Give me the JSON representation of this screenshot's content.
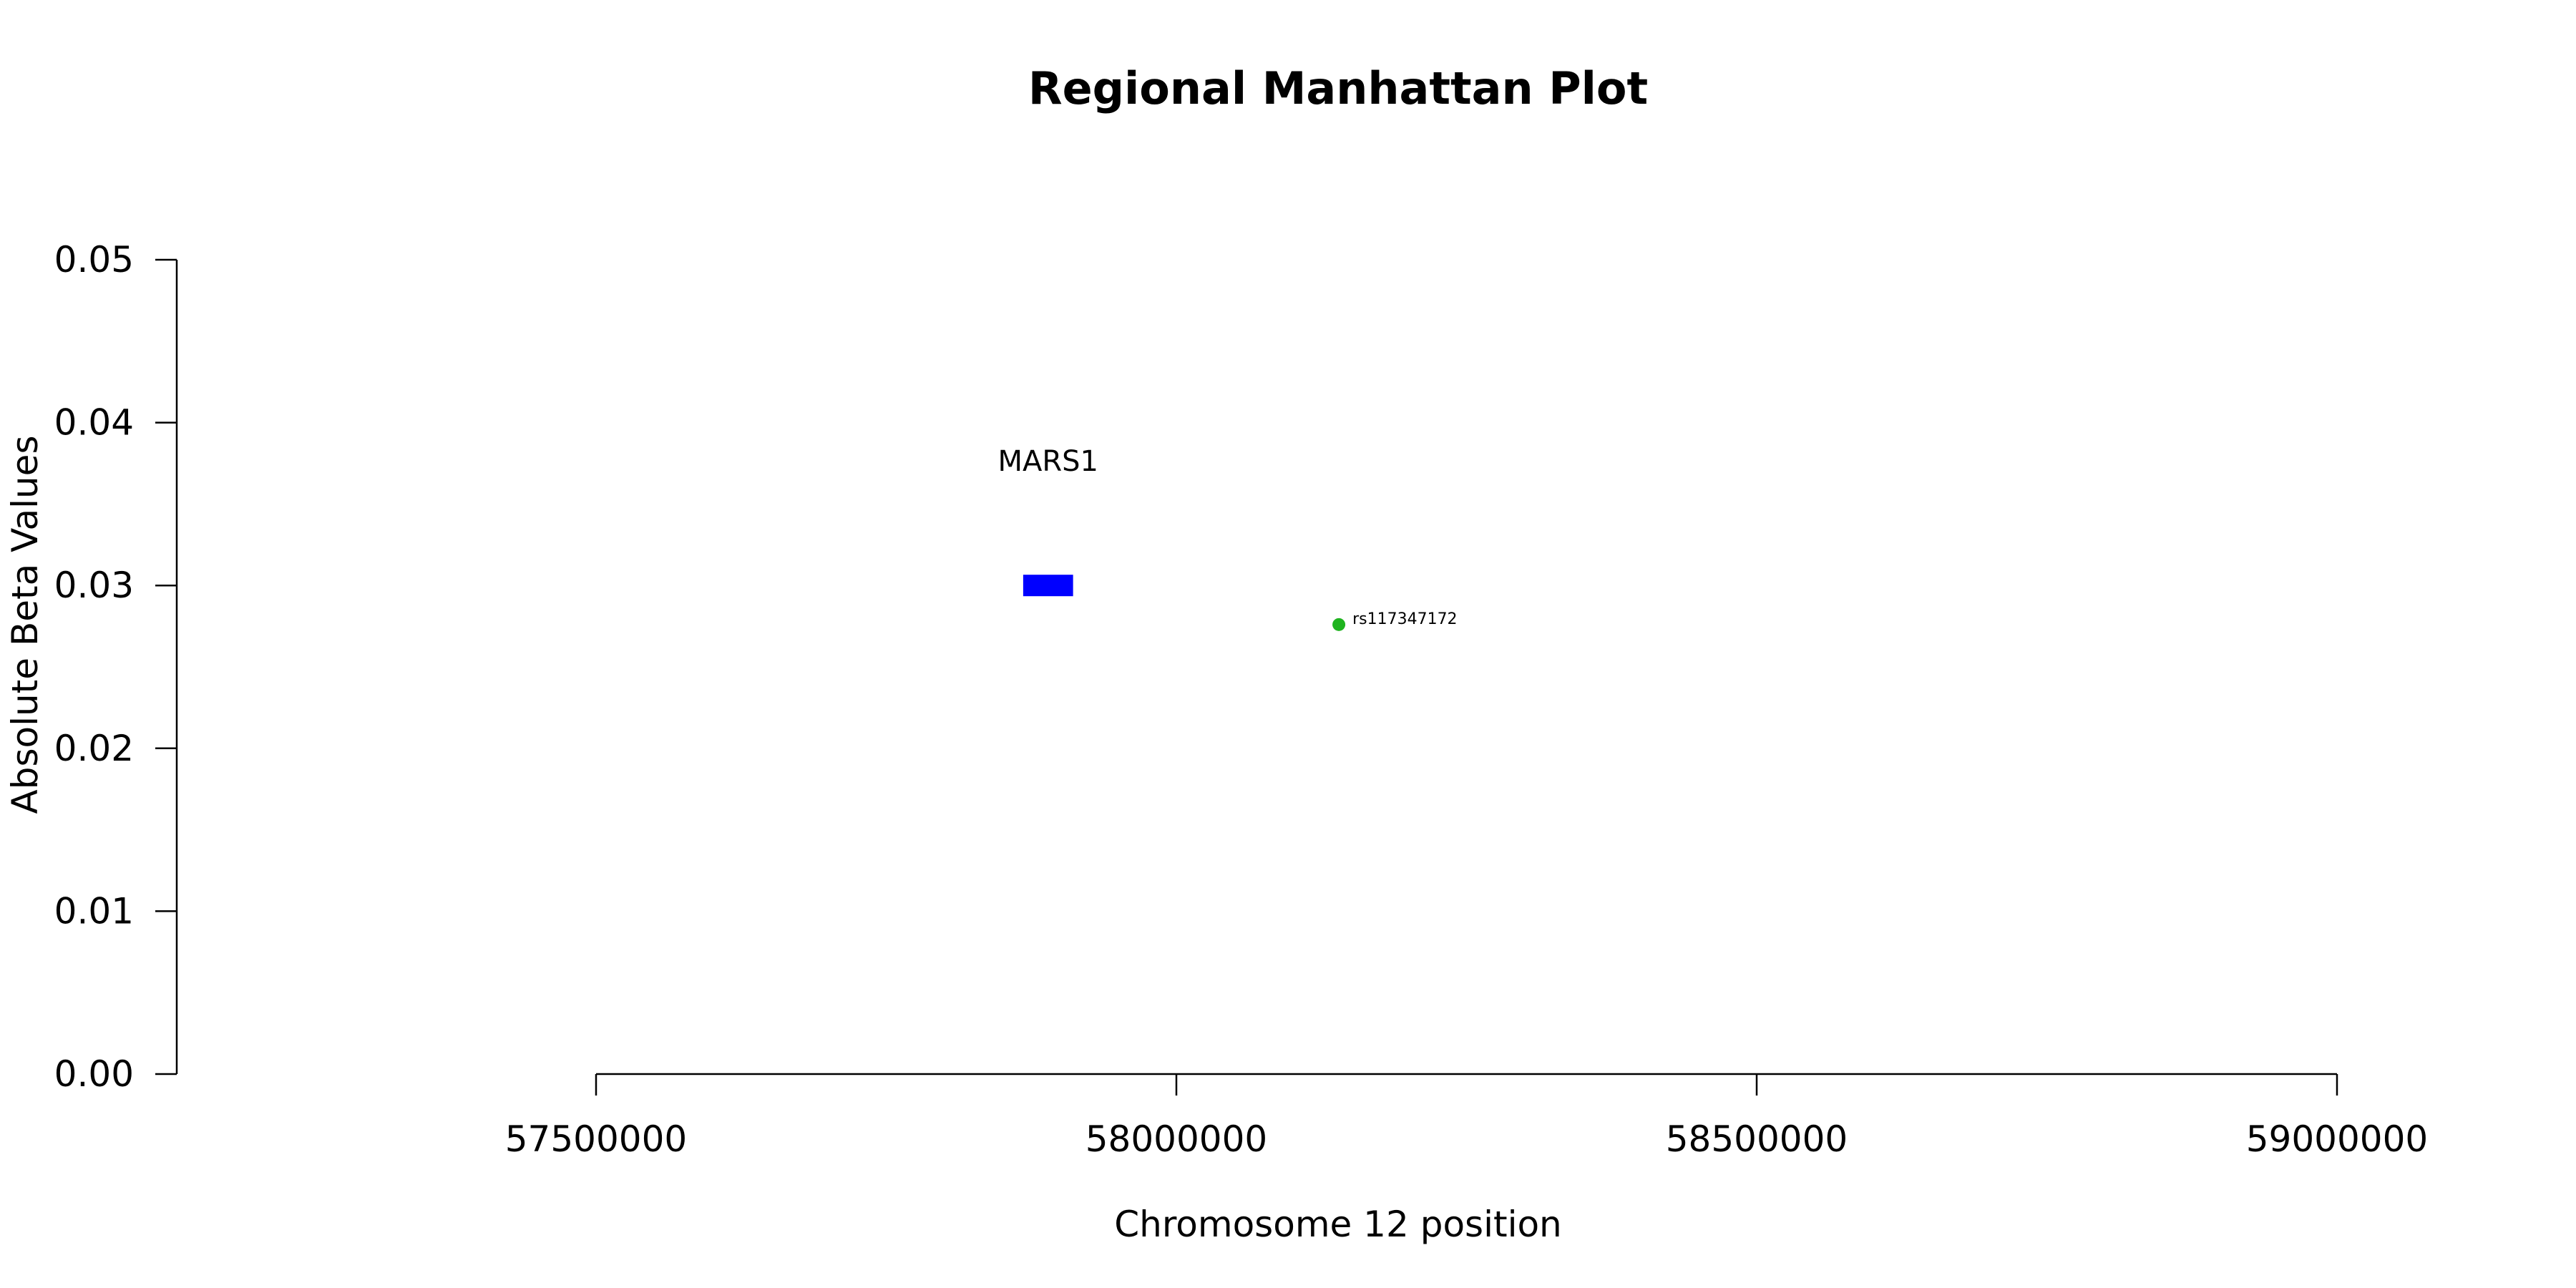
{
  "chart_data": {
    "type": "scatter",
    "title": "Regional Manhattan Plot",
    "xlabel": "Chromosome 12 position",
    "ylabel": "Absolute Beta Values",
    "xlim": [
      57500000,
      59000000
    ],
    "ylim": [
      0,
      0.05
    ],
    "x_ticks": [
      57500000,
      58000000,
      58500000,
      59000000
    ],
    "x_tick_labels": [
      "57500000",
      "58000000",
      "58500000",
      "59000000"
    ],
    "y_ticks": [
      0.0,
      0.01,
      0.02,
      0.03,
      0.04,
      0.05
    ],
    "y_tick_labels": [
      "0.00",
      "0.01",
      "0.02",
      "0.03",
      "0.04",
      "0.05"
    ],
    "genes": [
      {
        "name": "MARS1",
        "start": 57868000,
        "end": 57911000,
        "y": 0.03,
        "color": "#0000ff"
      }
    ],
    "points": [
      {
        "label": "rs117347172",
        "x": 58140000,
        "y": 0.0276,
        "color": "#1fb31f"
      }
    ]
  }
}
